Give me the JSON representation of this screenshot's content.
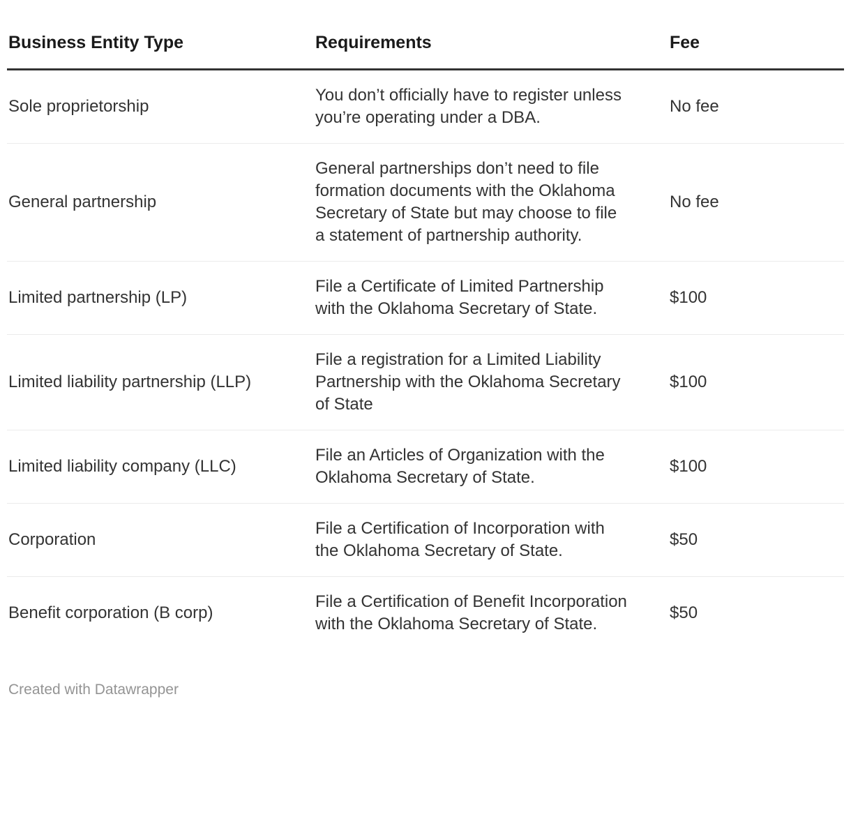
{
  "colors": {
    "background": "#ffffff",
    "header_text": "#1a1a1a",
    "body_text": "#333333",
    "header_rule": "#333333",
    "row_divider": "#ebebeb",
    "footer_text": "#949494"
  },
  "chart_data": {
    "type": "table",
    "columns": [
      "Business Entity Type",
      "Requirements",
      "Fee"
    ],
    "rows": [
      [
        "Sole proprietorship",
        "You don’t officially have to register unless you’re operating under a DBA.",
        "No fee"
      ],
      [
        "General partnership",
        "General partnerships don’t need to file formation documents with the Oklahoma Secretary of State but may choose to file a statement of partnership authority.",
        "No fee"
      ],
      [
        "Limited partnership (LP)",
        "File a Certificate of Limited Partnership with the Oklahoma Secretary of State.",
        "$100"
      ],
      [
        "Limited liability partnership (LLP)",
        "File a registration for a Limited Liability Partnership with the Oklahoma Secretary of State",
        "$100"
      ],
      [
        "Limited liability company (LLC)",
        "File an Articles of Organization with the Oklahoma Secretary of State.",
        "$100"
      ],
      [
        "Corporation",
        "File a Certification of Incorporation with the Oklahoma Secretary of State.",
        "$50"
      ],
      [
        "Benefit corporation (B corp)",
        "File a Certification of Benefit Incorporation with the Oklahoma Secretary of State.",
        "$50"
      ]
    ],
    "footer": "Created with Datawrapper"
  }
}
